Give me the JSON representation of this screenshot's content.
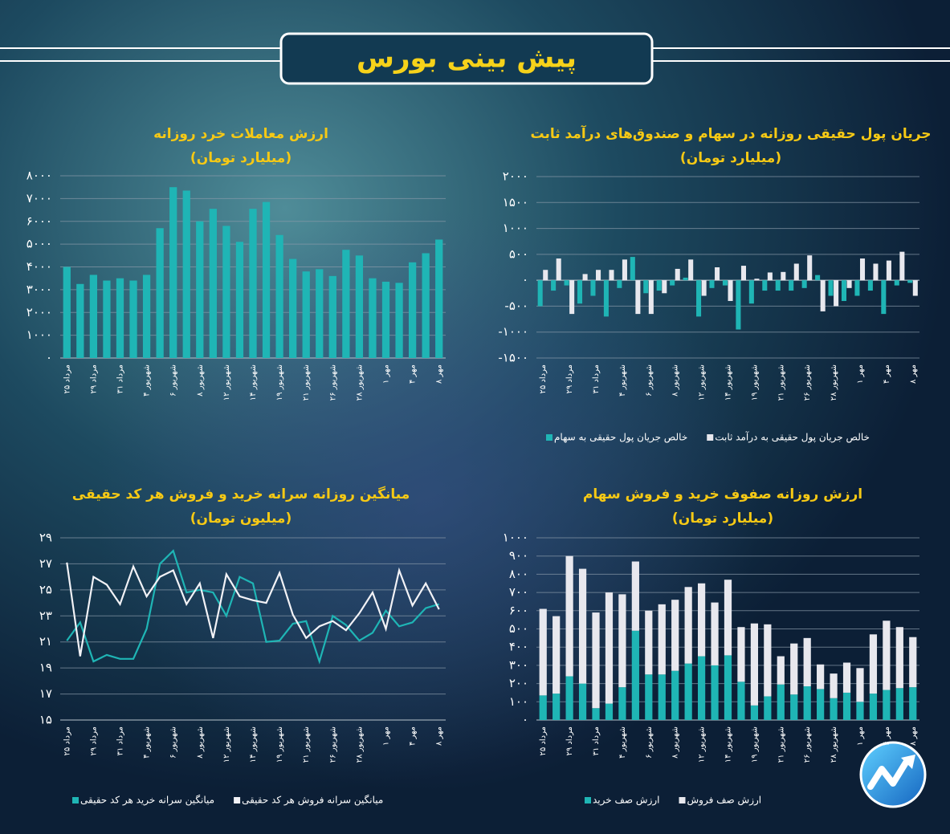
{
  "header": {
    "title": "پیش بینی بورس"
  },
  "chart_data": [
    {
      "type": "bar",
      "title": "ارزش معاملات خرد روزانه",
      "subtitle": "(میلیارد تومان)",
      "categories": [
        "۲۵ مرداد",
        null,
        "۲۹ مرداد",
        null,
        "۳۱ مرداد",
        null,
        "۴ شهریور",
        null,
        "۶ شهریور",
        null,
        "۸ شهریور",
        null,
        "۱۲ شهریور",
        null,
        "۱۴ شهریور",
        null,
        "۱۹ شهریور",
        null,
        "۲۱ شهریور",
        null,
        "۲۶ شهریور",
        null,
        "۲۸ شهریور",
        null,
        "۱ مهر",
        null,
        "۴ مهر",
        null,
        "۸ مهر"
      ],
      "values": [
        4000,
        3250,
        3650,
        3400,
        3500,
        3400,
        3650,
        5700,
        7500,
        7350,
        6000,
        6550,
        5800,
        5100,
        6550,
        6850,
        5400,
        4350,
        3800,
        3900,
        3600,
        4750,
        4500,
        3500,
        3350,
        3300,
        4200,
        4600,
        5200
      ],
      "color": "#1fb5b5",
      "ylim": [
        0,
        8000
      ],
      "yticks": [
        {
          "value": 0,
          "label": "۰"
        },
        {
          "value": 1000,
          "label": "۱۰۰۰"
        },
        {
          "value": 2000,
          "label": "۲۰۰۰"
        },
        {
          "value": 3000,
          "label": "۳۰۰۰"
        },
        {
          "value": 4000,
          "label": "۴۰۰۰"
        },
        {
          "value": 5000,
          "label": "۵۰۰۰"
        },
        {
          "value": 6000,
          "label": "۶۰۰۰"
        },
        {
          "value": 7000,
          "label": "۷۰۰۰"
        },
        {
          "value": 8000,
          "label": "۸۰۰۰"
        }
      ],
      "grid": true
    },
    {
      "type": "bar",
      "title": "جریان پول حقیقی روزانه در سهام و صندوق‌های درآمد ثابت",
      "subtitle": "(میلیارد تومان)",
      "categories": [
        "۲۵ مرداد",
        null,
        "۲۹ مرداد",
        null,
        "۳۱ مرداد",
        null,
        "۴ شهریور",
        null,
        "۶ شهریور",
        null,
        "۸ شهریور",
        null,
        "۱۲ شهریور",
        null,
        "۱۴ شهریور",
        null,
        "۱۹ شهریور",
        null,
        "۲۱ شهریور",
        null,
        "۲۶ شهریور",
        null,
        "۲۸ شهریور",
        null,
        "۱ مهر",
        null,
        "۴ مهر",
        null,
        "۸ مهر"
      ],
      "series": [
        {
          "name": "خالص جریان پول حقیقی به سهام",
          "color": "#1fb5b5",
          "values": [
            -500,
            -200,
            -100,
            -450,
            -300,
            -700,
            -150,
            450,
            -250,
            -200,
            -100,
            50,
            -700,
            -150,
            -100,
            -950,
            -450,
            -200,
            -200,
            -200,
            -150,
            100,
            -300,
            -400,
            -300,
            -200,
            -650,
            -100,
            -50
          ]
        },
        {
          "name": "خالص جریان پول حقیقی به درآمد ثابت",
          "color": "#e8e8ee",
          "values": [
            200,
            420,
            -650,
            120,
            200,
            200,
            400,
            -650,
            -650,
            -250,
            220,
            400,
            -300,
            250,
            -400,
            280,
            30,
            150,
            160,
            320,
            480,
            -600,
            -500,
            -150,
            420,
            320,
            380,
            550,
            -300
          ]
        }
      ],
      "ylim": [
        -1500,
        2000
      ],
      "yticks": [
        {
          "value": -1500,
          "label": "-۱۵۰۰"
        },
        {
          "value": -1000,
          "label": "-۱۰۰۰"
        },
        {
          "value": -500,
          "label": "-۵۰۰"
        },
        {
          "value": 0,
          "label": "۰"
        },
        {
          "value": 500,
          "label": "۵۰۰"
        },
        {
          "value": 1000,
          "label": "۱۰۰۰"
        },
        {
          "value": 1500,
          "label": "۱۵۰۰"
        },
        {
          "value": 2000,
          "label": "۲۰۰۰"
        }
      ],
      "grid": true
    },
    {
      "type": "line",
      "title": "میانگین روزانه سرانه خرید و فروش هر کد حقیقی",
      "subtitle": "(میلیون تومان)",
      "categories": [
        "۲۵ مرداد",
        null,
        "۲۹ مرداد",
        null,
        "۳۱ مرداد",
        null,
        "۴ شهریور",
        null,
        "۶ شهریور",
        null,
        "۸ شهریور",
        null,
        "۱۲ شهریور",
        null,
        "۱۴ شهریور",
        null,
        "۱۹ شهریور",
        null,
        "۲۱ شهریور",
        null,
        "۲۶ شهریور",
        null,
        "۲۸ شهریور",
        null,
        "۱ مهر",
        null,
        "۴ مهر",
        null,
        "۸ مهر"
      ],
      "series": [
        {
          "name": "میانگین سرانه خرید هر کد حقیقی",
          "color": "#1fb5b5",
          "values": [
            21.1,
            22.5,
            19.5,
            20.0,
            19.7,
            19.7,
            22.0,
            27.0,
            28.0,
            24.8,
            25.0,
            24.8,
            23.0,
            26.0,
            25.5,
            21.0,
            21.1,
            22.4,
            22.6,
            19.5,
            23.0,
            22.3,
            21.1,
            21.7,
            23.4,
            22.2,
            22.5,
            23.6,
            23.9
          ]
        },
        {
          "name": "میانگین سرانه فروش هر کد حقیقی",
          "color": "#f2f2f6",
          "values": [
            27.1,
            19.9,
            26.0,
            25.4,
            23.9,
            26.8,
            24.5,
            26.0,
            26.5,
            23.9,
            25.5,
            21.3,
            26.2,
            24.5,
            24.2,
            24.0,
            26.3,
            23.1,
            21.3,
            22.2,
            22.6,
            21.9,
            23.2,
            24.8,
            22.0,
            26.5,
            23.8,
            25.5,
            23.5
          ]
        }
      ],
      "ylim": [
        15,
        29
      ],
      "yticks": [
        {
          "value": 15,
          "label": "۱۵"
        },
        {
          "value": 17,
          "label": "۱۷"
        },
        {
          "value": 19,
          "label": "۱۹"
        },
        {
          "value": 21,
          "label": "۲۱"
        },
        {
          "value": 23,
          "label": "۲۳"
        },
        {
          "value": 25,
          "label": "۲۵"
        },
        {
          "value": 27,
          "label": "۲۷"
        },
        {
          "value": 29,
          "label": "۲۹"
        }
      ],
      "grid": true
    },
    {
      "type": "stacked_bar",
      "title": "ارزش روزانه صفوف خرید و فروش سهام",
      "subtitle": "(میلیارد تومان)",
      "categories": [
        "۲۵ مرداد",
        null,
        "۲۹ مرداد",
        null,
        "۳۱ مرداد",
        null,
        "۴ شهریور",
        null,
        "۶ شهریور",
        null,
        "۸ شهریور",
        null,
        "۱۲ شهریور",
        null,
        "۱۴ شهریور",
        null,
        "۱۹ شهریور",
        null,
        "۲۱ شهریور",
        null,
        "۲۶ شهریور",
        null,
        "۲۸ شهریور",
        null,
        "۱ مهر",
        null,
        "۴ مهر",
        null,
        "۸ مهر"
      ],
      "series": [
        {
          "name": "ارزش صف خرید",
          "color": "#1fb5b5",
          "values": [
            135,
            145,
            240,
            200,
            65,
            90,
            180,
            490,
            250,
            250,
            270,
            310,
            350,
            300,
            355,
            210,
            80,
            130,
            195,
            140,
            185,
            170,
            120,
            150,
            100,
            145,
            165,
            175,
            180
          ]
        },
        {
          "name": "ارزش صف فروش",
          "color": "#e8e8ee",
          "values": [
            475,
            425,
            660,
            630,
            525,
            610,
            510,
            380,
            350,
            385,
            390,
            420,
            400,
            345,
            415,
            300,
            450,
            395,
            155,
            280,
            265,
            135,
            135,
            165,
            185,
            325,
            380,
            335,
            275
          ]
        }
      ],
      "ylim": [
        0,
        1000
      ],
      "yticks": [
        {
          "value": 0,
          "label": "۰"
        },
        {
          "value": 100,
          "label": "۱۰۰"
        },
        {
          "value": 200,
          "label": "۲۰۰"
        },
        {
          "value": 300,
          "label": "۳۰۰"
        },
        {
          "value": 400,
          "label": "۴۰۰"
        },
        {
          "value": 500,
          "label": "۵۰۰"
        },
        {
          "value": 600,
          "label": "۶۰۰"
        },
        {
          "value": 700,
          "label": "۷۰۰"
        },
        {
          "value": 800,
          "label": "۸۰۰"
        },
        {
          "value": 900,
          "label": "۹۰۰"
        },
        {
          "value": 1000,
          "label": "۱۰۰۰"
        }
      ],
      "grid": true
    }
  ]
}
